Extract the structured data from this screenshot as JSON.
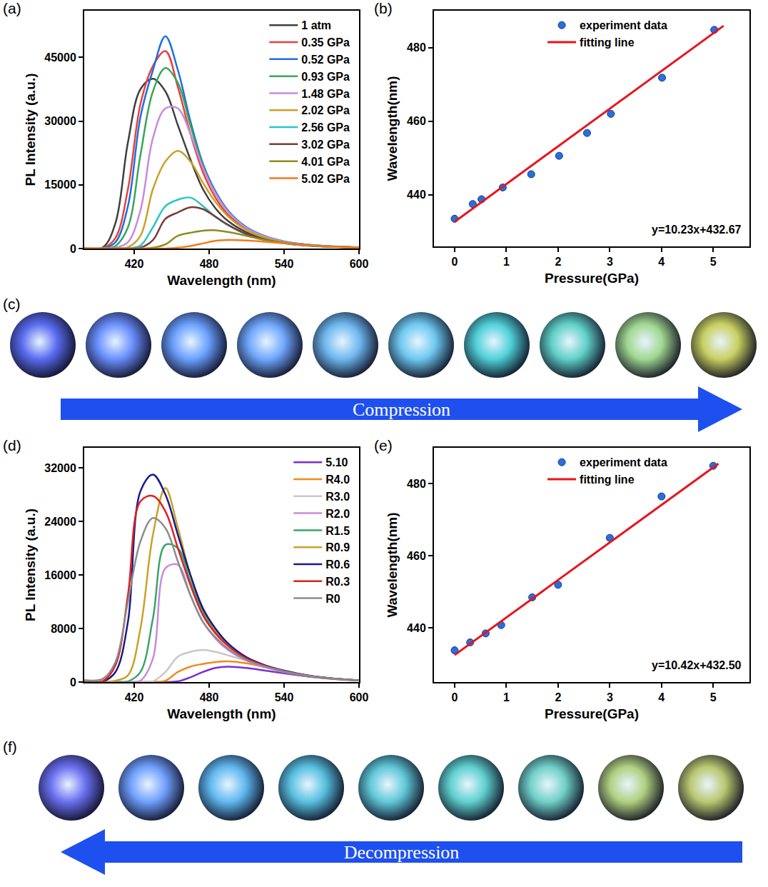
{
  "chart_data": [
    {
      "letter": "(a)",
      "type": "line",
      "x_label": "Wavelength (nm)",
      "y_label": "PL Intensity (a.u.)",
      "x": [
        380,
        395,
        405,
        415,
        425,
        435,
        445,
        455,
        465,
        475,
        485,
        495,
        510,
        525,
        540,
        560,
        580,
        600
      ],
      "series": [
        {
          "name": "1 atm",
          "color": "#404040",
          "values": [
            0,
            300,
            6000,
            25000,
            37500,
            40000,
            37000,
            29000,
            21000,
            14000,
            9500,
            6500,
            3800,
            2200,
            1300,
            700,
            400,
            200
          ]
        },
        {
          "name": "0.35 GPa",
          "color": "#e8413c",
          "values": [
            0,
            100,
            2500,
            14000,
            34000,
            43000,
            46500,
            38000,
            27000,
            18000,
            12000,
            8000,
            4500,
            2600,
            1500,
            800,
            450,
            250
          ]
        },
        {
          "name": "0.52 GPa",
          "color": "#1f6fe0",
          "values": [
            0,
            50,
            1500,
            10000,
            31000,
            42000,
            50000,
            42000,
            30000,
            20000,
            13500,
            9000,
            5000,
            2900,
            1700,
            900,
            500,
            250
          ]
        },
        {
          "name": "0.93 GPa",
          "color": "#3aa55a",
          "values": [
            0,
            0,
            600,
            5000,
            22000,
            37000,
            42500,
            39000,
            29000,
            19500,
            13000,
            8700,
            4800,
            2800,
            1600,
            850,
            480,
            240
          ]
        },
        {
          "name": "1.48 GPa",
          "color": "#c88ae0",
          "values": [
            0,
            0,
            200,
            1500,
            9000,
            26000,
            33000,
            33000,
            27000,
            19000,
            13000,
            8700,
            4800,
            2800,
            1600,
            850,
            480,
            240
          ]
        },
        {
          "name": "2.02 GPa",
          "color": "#c9a227",
          "values": [
            0,
            0,
            0,
            300,
            3000,
            14000,
            20500,
            23000,
            20500,
            15500,
            11000,
            7600,
            4300,
            2500,
            1450,
            800,
            450,
            230
          ]
        },
        {
          "name": "2.56 GPa",
          "color": "#28c6c6",
          "values": [
            0,
            0,
            0,
            50,
            700,
            5000,
            10000,
            11500,
            12000,
            10000,
            7500,
            5500,
            3300,
            2000,
            1200,
            650,
            380,
            200
          ]
        },
        {
          "name": "3.02 GPa",
          "color": "#7a3b3b",
          "values": [
            0,
            0,
            0,
            0,
            200,
            2000,
            7000,
            8500,
            9700,
            9300,
            7500,
            5600,
            3400,
            2100,
            1300,
            700,
            400,
            200
          ]
        },
        {
          "name": "4.01 GPa",
          "color": "#8c8c1e",
          "values": [
            0,
            0,
            0,
            0,
            0,
            200,
            1000,
            3000,
            3700,
            4200,
            4300,
            3900,
            3000,
            2000,
            1300,
            700,
            400,
            200
          ]
        },
        {
          "name": "5.02 GPa",
          "color": "#f07a1e",
          "values": [
            0,
            0,
            0,
            0,
            0,
            0,
            0,
            200,
            600,
            1200,
            1800,
            2000,
            1900,
            1600,
            1200,
            700,
            400,
            200
          ]
        }
      ],
      "xlim": [
        380,
        600
      ],
      "xticks": [
        420,
        480,
        540,
        600
      ],
      "ylim": [
        0,
        56000
      ],
      "yticks": [
        0,
        15000,
        30000,
        45000
      ],
      "grid": false,
      "legend": "top right"
    },
    {
      "letter": "(b)",
      "type": "scatter",
      "x_label": "Pressure(GPa)",
      "y_label": "Wavelength(nm)",
      "series": [
        {
          "name": "experiment data",
          "type": "scatter",
          "marker": "circle",
          "color": "#2a6fdb",
          "x": [
            0,
            0.35,
            0.52,
            0.93,
            1.48,
            2.02,
            2.56,
            3.02,
            4.01,
            5.02
          ],
          "values": [
            433.5,
            437.5,
            438.8,
            442,
            445.6,
            450.6,
            456.8,
            462,
            471.8,
            484.8
          ]
        },
        {
          "name": "fitting line",
          "type": "line",
          "color": "#e8141c",
          "x": [
            0,
            5.2
          ],
          "values": [
            432.7,
            485.9
          ]
        }
      ],
      "annotations": [
        "y=10.23x+432.67"
      ],
      "xlim": [
        -0.4,
        5.7
      ],
      "xticks": [
        0,
        1,
        2,
        3,
        4,
        5
      ],
      "ylim": [
        426,
        490
      ],
      "yticks": [
        440,
        460,
        480
      ],
      "grid": false,
      "legend": "top"
    },
    {
      "letter": "(d)",
      "type": "line",
      "x_label": "Wavelength (nm)",
      "y_label": "PL Intensity (a.u.)",
      "x": [
        380,
        395,
        405,
        415,
        425,
        435,
        445,
        455,
        465,
        475,
        485,
        495,
        510,
        525,
        540,
        560,
        580,
        600
      ],
      "series": [
        {
          "name": "5.10",
          "color": "#7b2fd0",
          "values": [
            0,
            0,
            0,
            0,
            0,
            0,
            0,
            100,
            700,
            1500,
            2100,
            2300,
            2100,
            1700,
            1300,
            800,
            450,
            250
          ]
        },
        {
          "name": "R4.0",
          "color": "#f08a1e",
          "values": [
            0,
            0,
            0,
            0,
            0,
            0,
            200,
            1500,
            2300,
            2700,
            3000,
            3100,
            2800,
            2200,
            1600,
            900,
            500,
            250
          ]
        },
        {
          "name": "R3.0",
          "color": "#c8c8c8",
          "values": [
            0,
            0,
            0,
            0,
            0,
            100,
            1500,
            3800,
            4500,
            4800,
            4500,
            4000,
            3200,
            2400,
            1700,
            950,
            520,
            260
          ]
        },
        {
          "name": "R2.0",
          "color": "#c88ae0",
          "values": [
            0,
            0,
            0,
            0,
            200,
            3500,
            17000,
            17500,
            13000,
            9000,
            6500,
            4800,
            3200,
            2200,
            1500,
            850,
            480,
            240
          ]
        },
        {
          "name": "R1.5",
          "color": "#3aa56a",
          "values": [
            0,
            0,
            0,
            100,
            1500,
            9500,
            20500,
            20000,
            15000,
            10500,
            7500,
            5500,
            3500,
            2400,
            1600,
            900,
            500,
            250
          ]
        },
        {
          "name": "R0.9",
          "color": "#c9a227",
          "values": [
            0,
            0,
            200,
            1000,
            8000,
            22000,
            29000,
            23000,
            16000,
            11000,
            7800,
            5700,
            3600,
            2400,
            1600,
            900,
            500,
            250
          ]
        },
        {
          "name": "R0.6",
          "color": "#1a1a8c",
          "values": [
            0,
            100,
            1500,
            9000,
            28500,
            31000,
            28000,
            22000,
            16000,
            11000,
            8000,
            5800,
            3700,
            2500,
            1700,
            950,
            520,
            260
          ]
        },
        {
          "name": "R0.3",
          "color": "#e02020",
          "values": [
            0,
            150,
            2500,
            13000,
            27000,
            27800,
            25500,
            20000,
            14500,
            10000,
            7300,
            5400,
            3500,
            2400,
            1600,
            900,
            500,
            250
          ]
        },
        {
          "name": "R0",
          "color": "#8c8c8c",
          "values": [
            300,
            500,
            3000,
            12000,
            21000,
            24500,
            23000,
            18000,
            13000,
            9000,
            6700,
            5000,
            3300,
            2300,
            1600,
            900,
            500,
            250
          ]
        }
      ],
      "xlim": [
        380,
        600
      ],
      "xticks": [
        420,
        480,
        540,
        600
      ],
      "ylim": [
        0,
        35000
      ],
      "yticks": [
        0,
        8000,
        16000,
        24000,
        32000
      ],
      "grid": false,
      "legend": "top right"
    },
    {
      "letter": "(e)",
      "type": "scatter",
      "x_label": "Pressure(GPa)",
      "y_label": "Wavelength(nm)",
      "series": [
        {
          "name": "experiment data",
          "type": "scatter",
          "marker": "circle",
          "color": "#2a6fdb",
          "x": [
            0,
            0.3,
            0.6,
            0.9,
            1.5,
            2.0,
            3.0,
            4.0,
            5.0
          ],
          "values": [
            433.8,
            436,
            438.5,
            440.8,
            448.5,
            452,
            465,
            476.5,
            485
          ]
        },
        {
          "name": "fitting line",
          "type": "line",
          "color": "#e8141c",
          "x": [
            0,
            5.1
          ],
          "values": [
            432.5,
            485.6
          ]
        }
      ],
      "annotations": [
        "y=10.42x+432.50"
      ],
      "xlim": [
        -0.4,
        5.7
      ],
      "xticks": [
        0,
        1,
        2,
        3,
        4,
        5
      ],
      "ylim": [
        425,
        490
      ],
      "yticks": [
        440,
        460,
        480
      ],
      "grid": false,
      "legend": "top"
    }
  ],
  "photo_rows": [
    {
      "letter": "(c)",
      "arrow_text": "Compression",
      "direction": "right",
      "tints": [
        "#5a6cf0",
        "#6a90ff",
        "#6aa0ff",
        "#70a8ff",
        "#6fb8f0",
        "#6ec8f0",
        "#50d0d8",
        "#60d0c8",
        "#a0d890",
        "#c8d060"
      ]
    },
    {
      "letter": "(f)",
      "arrow_text": "Decompression",
      "direction": "left",
      "tints": [
        "#6a70f0",
        "#70a0ff",
        "#60b8f0",
        "#58c0e0",
        "#60c8d8",
        "#60d0d0",
        "#70d0c8",
        "#b0d080",
        "#b8c870"
      ]
    }
  ]
}
